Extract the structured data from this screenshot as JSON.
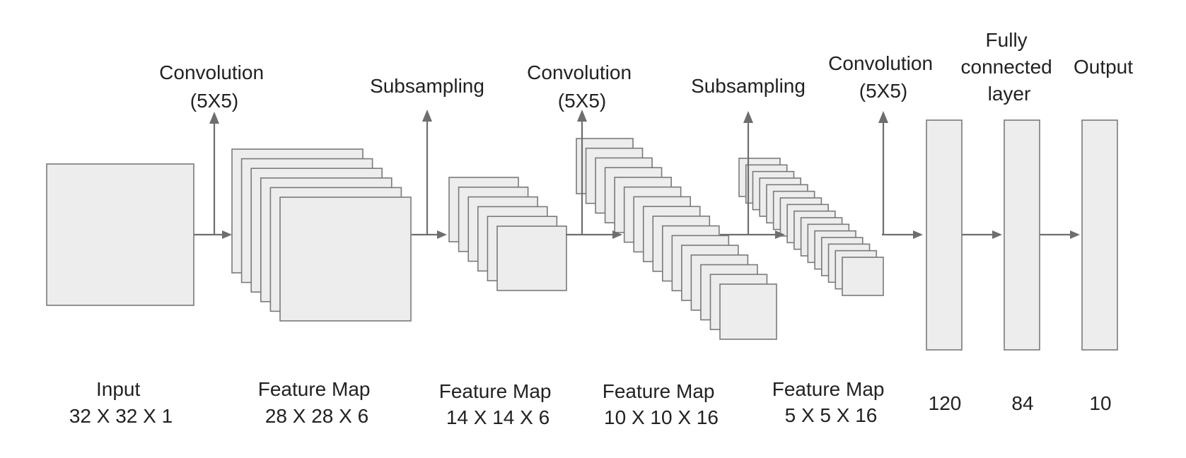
{
  "operations": {
    "conv1": [
      "Convolution",
      "(5X5)"
    ],
    "sub1": [
      "Subsampling"
    ],
    "conv2": [
      "Convolution",
      "(5X5)"
    ],
    "sub2": [
      "Subsampling"
    ],
    "conv3": [
      "Convolution",
      "(5X5)"
    ],
    "fc": [
      "Fully",
      "connected",
      "layer"
    ],
    "output": [
      "Output"
    ]
  },
  "layers": {
    "input": [
      "Input",
      "32 X 32 X 1"
    ],
    "c1": [
      "Feature Map",
      "28 X 28 X 6"
    ],
    "s2": [
      "Feature Map",
      "14 X 14 X 6"
    ],
    "c3": [
      "Feature Map",
      "10 X 10 X 16"
    ],
    "s4": [
      "Feature Map",
      "5 X 5 X 16"
    ],
    "f5": [
      "120"
    ],
    "f6": [
      "84"
    ],
    "out": [
      "10"
    ]
  }
}
